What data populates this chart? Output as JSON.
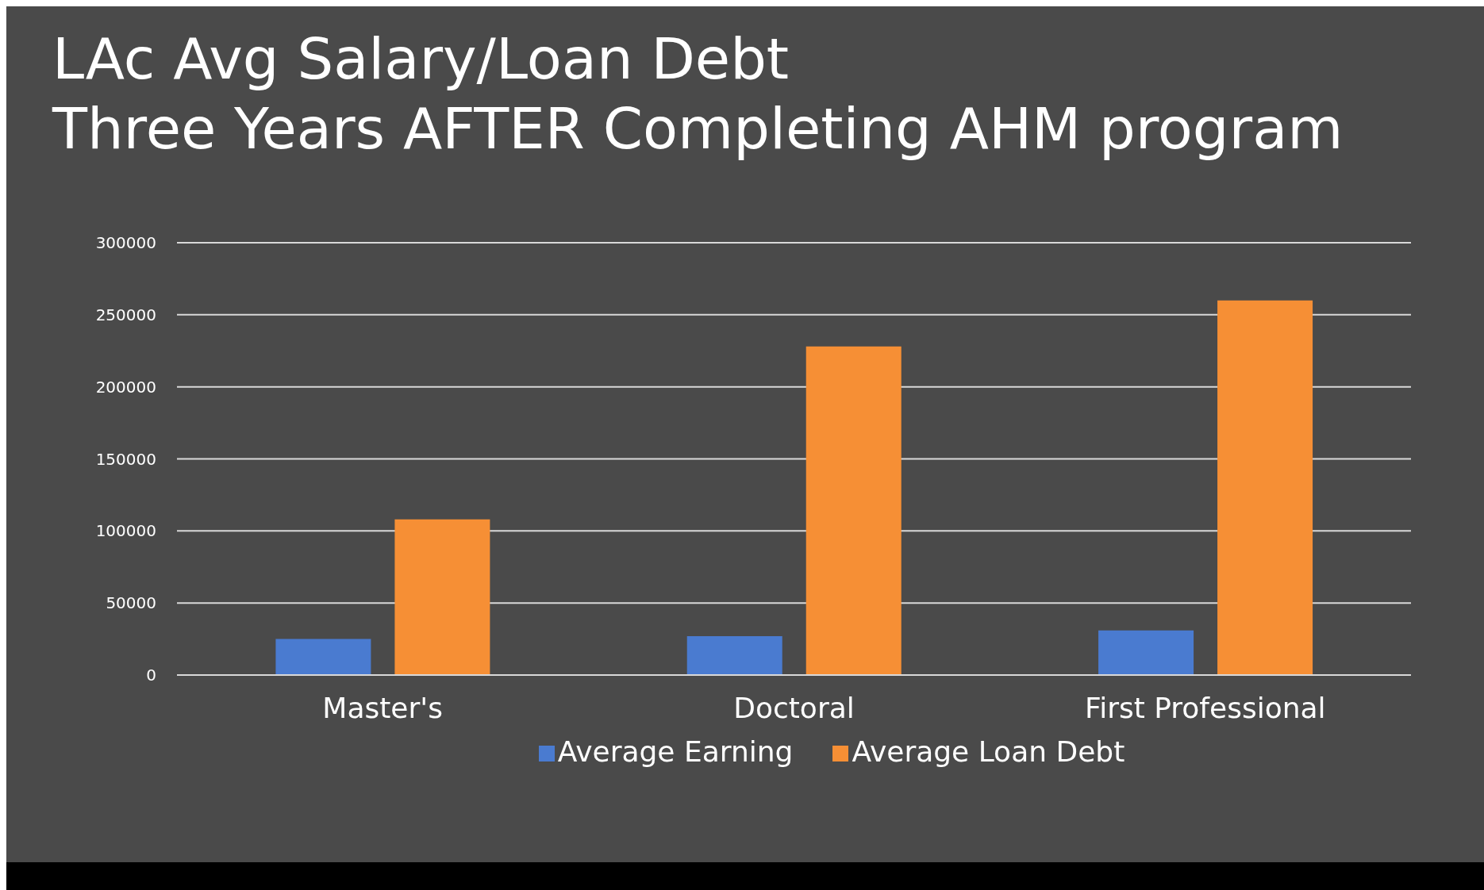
{
  "chart_data": {
    "type": "bar",
    "title": "LAc Avg Salary/Loan Debt\nThree Years AFTER Completing AHM program",
    "categories": [
      "Master's",
      "Doctoral",
      "First Professional"
    ],
    "series": [
      {
        "name": "Average Earning",
        "color": "#4a7bd0",
        "values": [
          25000,
          27000,
          31000
        ]
      },
      {
        "name": "Average Loan Debt",
        "color": "#f68f35",
        "values": [
          108000,
          228000,
          260000
        ]
      }
    ],
    "ylim": [
      0,
      300000
    ],
    "yticks": [
      0,
      50000,
      100000,
      150000,
      200000,
      250000,
      300000
    ],
    "grid": "y",
    "legend": "bottom"
  }
}
